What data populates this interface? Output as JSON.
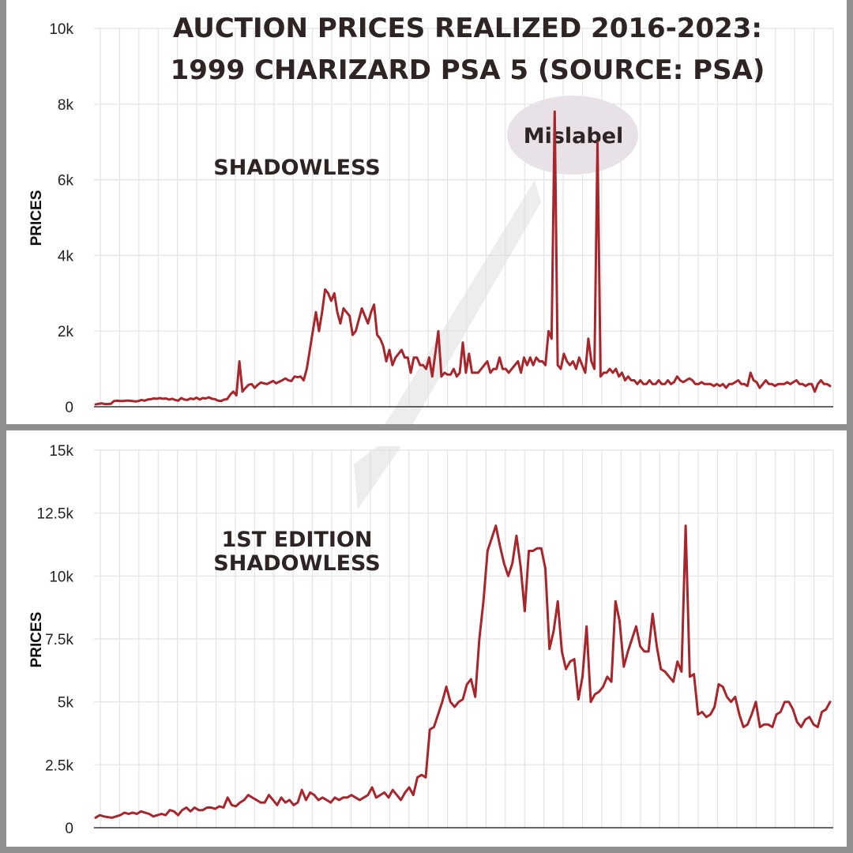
{
  "title_line1": "AUCTION PRICES REALIZED 2016-2023:",
  "title_line2": "1999 CHARIZARD PSA 5 (SOURCE: PSA)",
  "annotation": "Mislabel",
  "colors": {
    "line": "#a8262b",
    "annotation_text": "#e8321c",
    "annotation_bubble": "#e8e1e7",
    "title": "#2e2424",
    "panel_border": "#8f8f8f"
  },
  "chart_data": [
    {
      "type": "line",
      "series": [
        {
          "name": "SHADOWLESS",
          "values": [
            60,
            80,
            90,
            70,
            70,
            80,
            150,
            160,
            150,
            150,
            160,
            160,
            150,
            140,
            150,
            180,
            160,
            190,
            200,
            220,
            210,
            230,
            210,
            220,
            190,
            210,
            180,
            160,
            230,
            190,
            180,
            220,
            200,
            240,
            190,
            230,
            220,
            250,
            210,
            200,
            160,
            150,
            190,
            200,
            320,
            400,
            300,
            1200,
            400,
            500,
            580,
            600,
            500,
            580,
            640,
            620,
            600,
            640,
            680,
            620,
            660,
            700,
            750,
            700,
            680,
            800,
            780,
            800,
            700,
            1000,
            1500,
            2000,
            2500,
            2000,
            2500,
            3100,
            3000,
            2800,
            3000,
            2500,
            2200,
            2600,
            2500,
            2400,
            1900,
            2000,
            2300,
            2600,
            2400,
            2200,
            2500,
            2700,
            1900,
            1800,
            1600,
            1200,
            1500,
            1100,
            1300,
            1400,
            1500,
            1300,
            1300,
            900,
            1300,
            1300,
            1100,
            1100,
            1000,
            1300,
            800,
            1400,
            2000,
            800,
            900,
            850,
            850,
            1000,
            800,
            900,
            1700,
            900,
            1400,
            900,
            900,
            900,
            1000,
            1100,
            1200,
            900,
            1000,
            1000,
            1300,
            1000,
            1000,
            900,
            1000,
            1100,
            1200,
            900,
            1300,
            1100,
            1300,
            1100,
            1300,
            1200,
            1200,
            1100,
            2000,
            1800,
            7800,
            1100,
            1000,
            1400,
            1200,
            1100,
            1200,
            1000,
            1300,
            1100,
            900,
            1800,
            1200,
            1000,
            7000,
            800,
            900,
            900,
            1000,
            900,
            1000,
            800,
            900,
            700,
            800,
            700,
            700,
            600,
            700,
            600,
            600,
            700,
            600,
            600,
            700,
            600,
            600,
            700,
            600,
            650,
            800,
            700,
            650,
            700,
            750,
            700,
            600,
            600,
            650,
            600,
            600,
            600,
            550,
            600,
            550,
            600,
            500,
            600,
            600,
            650,
            700,
            600,
            600,
            550,
            900,
            700,
            650,
            500,
            600,
            700,
            600,
            600,
            550,
            600,
            600,
            600,
            650,
            600,
            650,
            700,
            600,
            600,
            550,
            600,
            600,
            400,
            600,
            700,
            600,
            600,
            550
          ]
        }
      ],
      "ylabel": "PRICES",
      "ylim": [
        0,
        10000
      ],
      "yticks": [
        0,
        2000,
        4000,
        6000,
        8000,
        10000
      ],
      "ytick_labels": [
        "0",
        "2k",
        "4k",
        "6k",
        "8k",
        "10k"
      ],
      "grid": true
    },
    {
      "type": "line",
      "series": [
        {
          "name": "1ST EDITION\nSHADOWLESS",
          "values": [
            400,
            500,
            450,
            420,
            400,
            450,
            500,
            600,
            550,
            600,
            550,
            650,
            600,
            550,
            450,
            500,
            550,
            500,
            700,
            650,
            500,
            700,
            800,
            650,
            800,
            700,
            700,
            800,
            800,
            750,
            850,
            800,
            1200,
            900,
            850,
            1000,
            1100,
            1300,
            1200,
            1100,
            1000,
            1000,
            1300,
            1100,
            900,
            1200,
            1000,
            1100,
            900,
            1000,
            1500,
            1100,
            1400,
            1300,
            1100,
            1200,
            1100,
            1000,
            1200,
            1100,
            1200,
            1200,
            1300,
            1200,
            1100,
            1200,
            1300,
            1600,
            1200,
            1300,
            1400,
            1200,
            1500,
            1300,
            1100,
            1400,
            1600,
            1300,
            2000,
            2100,
            2000,
            3900,
            4000,
            4500,
            5000,
            5600,
            5000,
            4800,
            5000,
            5100,
            5700,
            5900,
            5200,
            7500,
            9000,
            11000,
            11500,
            12000,
            11200,
            10500,
            10000,
            10500,
            11600,
            10400,
            8600,
            11000,
            11000,
            11100,
            11100,
            10300,
            7100,
            7800,
            9000,
            7000,
            6300,
            6600,
            6700,
            5100,
            6000,
            8000,
            5000,
            5300,
            5400,
            5600,
            6000,
            5800,
            9000,
            8200,
            6400,
            7000,
            7500,
            8000,
            7200,
            7000,
            7000,
            8500,
            7200,
            6300,
            6200,
            6000,
            5800,
            6600,
            6200,
            12000,
            6000,
            6100,
            4500,
            4600,
            4400,
            4500,
            4800,
            5700,
            5600,
            5200,
            5000,
            5200,
            4500,
            4000,
            4100,
            4500,
            5000,
            4000,
            4100,
            4100,
            4000,
            4500,
            4600,
            5000,
            5000,
            4700,
            4200,
            4000,
            4300,
            4400,
            4100,
            4000,
            4600,
            4700,
            5000
          ]
        }
      ],
      "ylabel": "PRICES",
      "ylim": [
        0,
        15000
      ],
      "yticks": [
        0,
        2500,
        5000,
        7500,
        10000,
        12500,
        15000
      ],
      "ytick_labels": [
        "0",
        "2.5k",
        "5k",
        "7.5k",
        "10k",
        "12.5k",
        "15k"
      ],
      "grid": true
    }
  ]
}
